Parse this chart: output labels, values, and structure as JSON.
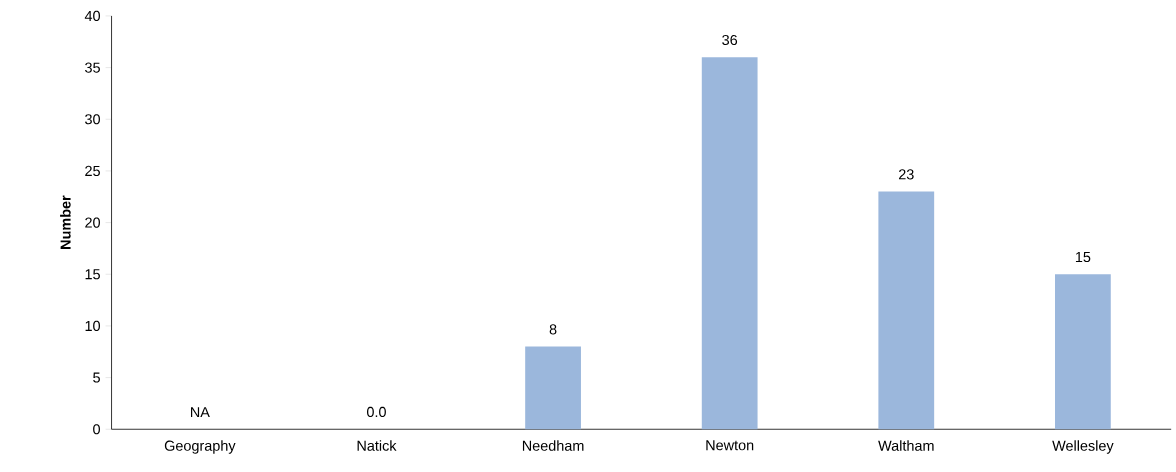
{
  "chart_data": {
    "type": "bar",
    "ylabel": "Number",
    "categories": [
      "Geography",
      "Natick",
      "Needham",
      "Newton",
      "Waltham",
      "Wellesley"
    ],
    "values": [
      null,
      0,
      8,
      36,
      23,
      15
    ],
    "value_labels": [
      "NA",
      "0.0",
      "8",
      "36",
      "23",
      "15"
    ],
    "color": "#9bb7dc",
    "ylim": [
      0,
      40
    ],
    "yticks": [
      0,
      5,
      10,
      15,
      20,
      25,
      30,
      35,
      40
    ]
  }
}
